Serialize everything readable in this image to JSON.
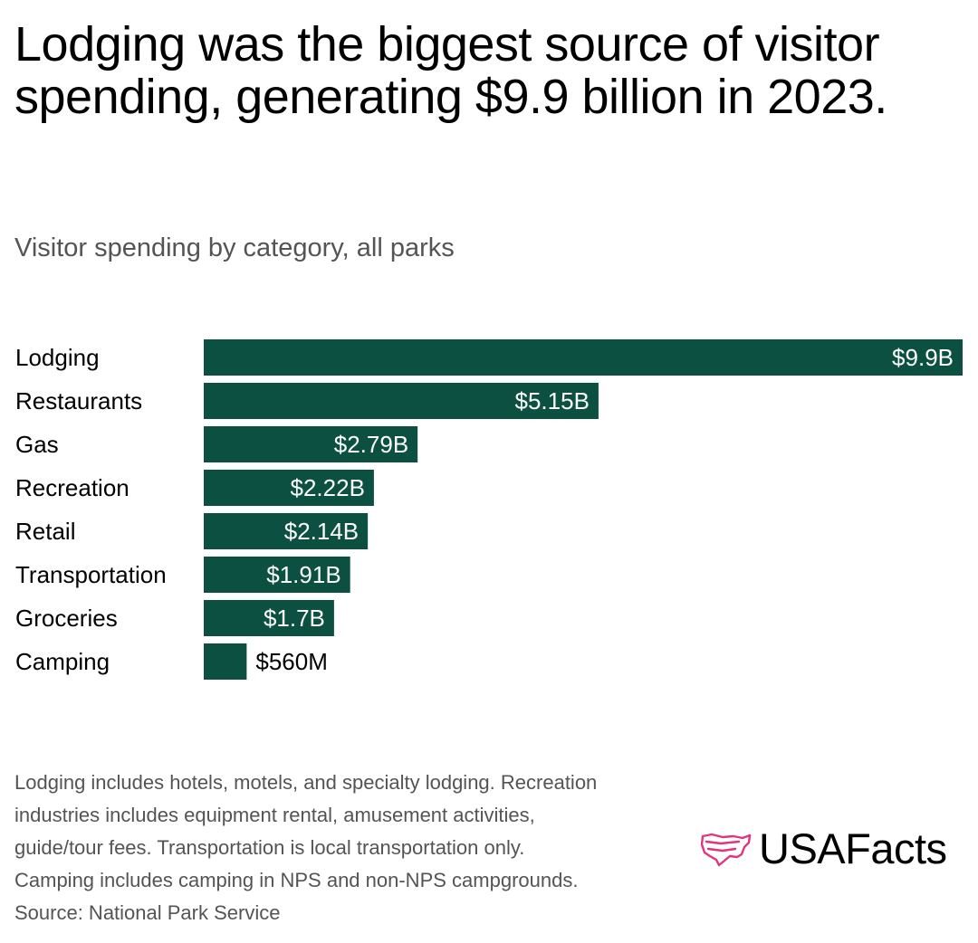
{
  "header": {
    "title": "Lodging was the biggest source of visitor spending, generating $9.9 billion in 2023.",
    "subtitle": "Visitor spending by category, all parks"
  },
  "colors": {
    "bar": "#0b5040",
    "label_inside": "#ffffff",
    "label_outside": "#000000",
    "logo_accent": "#e0357f"
  },
  "chart_data": {
    "type": "bar",
    "orientation": "horizontal",
    "categories": [
      "Lodging",
      "Restaurants",
      "Gas",
      "Recreation",
      "Retail",
      "Transportation",
      "Groceries",
      "Camping"
    ],
    "values": [
      9.9,
      5.15,
      2.79,
      2.22,
      2.14,
      1.91,
      1.7,
      0.56
    ],
    "value_labels": [
      "$9.9B",
      "$5.15B",
      "$2.79B",
      "$2.22B",
      "$2.14B",
      "$1.91B",
      "$1.7B",
      "$560M"
    ],
    "unit": "billions of dollars",
    "xlim": [
      0,
      9.9
    ],
    "grid": false,
    "legend": "none"
  },
  "footnote": {
    "lines": [
      "Lodging includes hotels, motels, and specialty lodging. Recreation",
      "industries includes equipment rental, amusement activities,",
      "guide/tour fees. Transportation is local transportation only.",
      "Camping includes camping in NPS and non-NPS campgrounds.",
      "Source: National Park Service"
    ]
  },
  "logo": {
    "text": "USAFacts",
    "icon": "usa-map-icon"
  }
}
